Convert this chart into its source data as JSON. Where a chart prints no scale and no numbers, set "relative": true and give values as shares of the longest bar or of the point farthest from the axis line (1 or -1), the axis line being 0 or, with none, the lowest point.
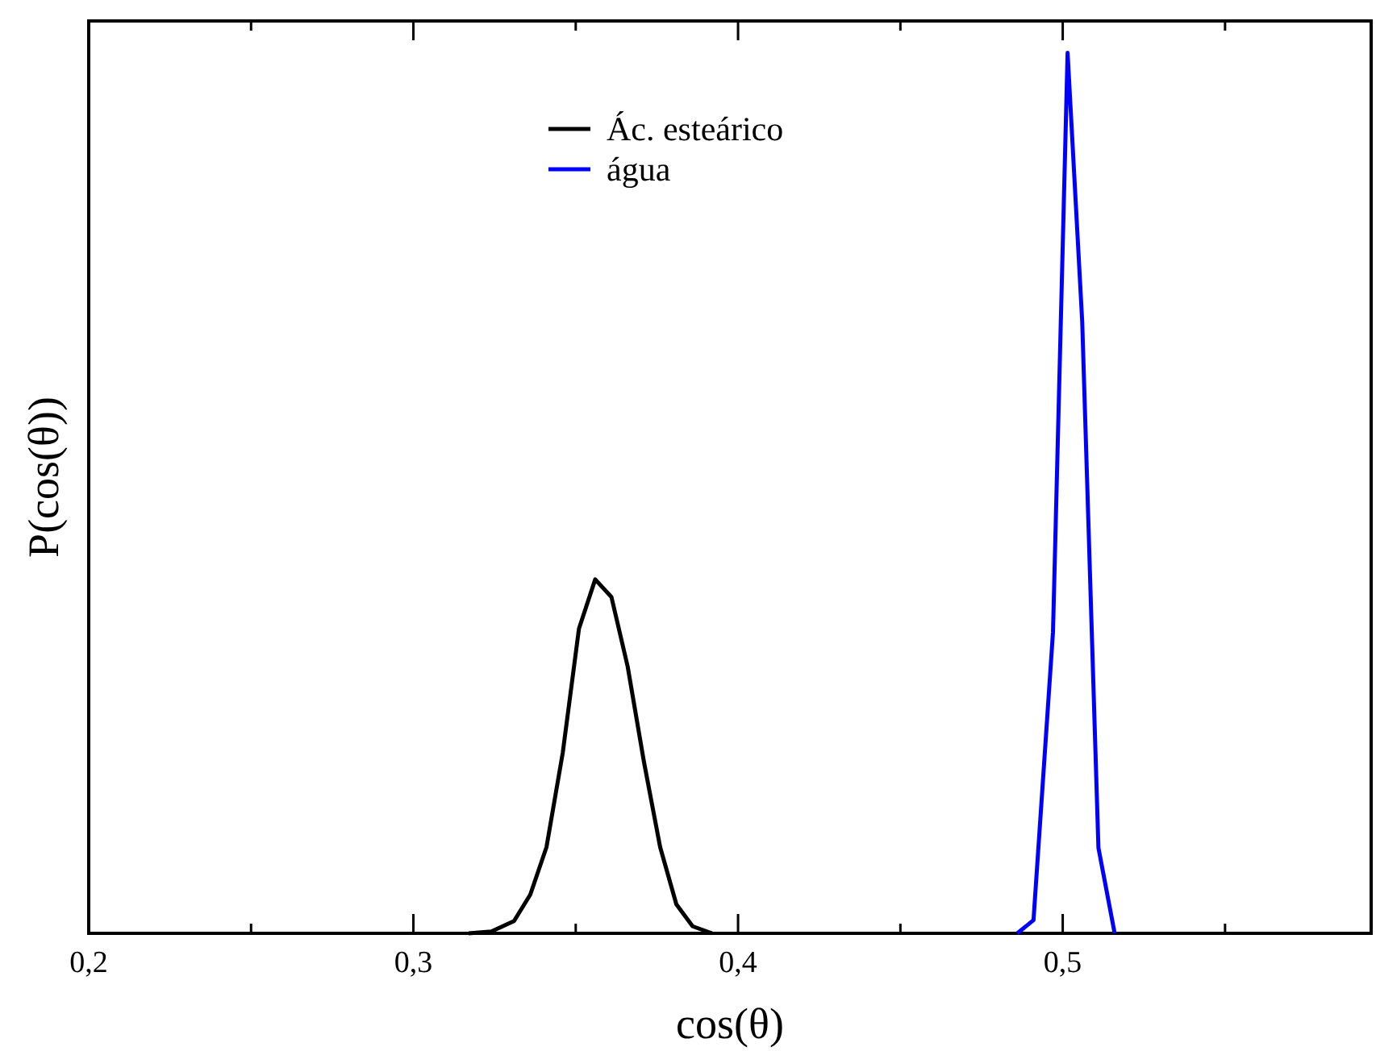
{
  "chart_data": {
    "type": "line",
    "relative": true,
    "xlabel": "cos(θ)",
    "ylabel": "P(cos(θ))",
    "xlim": [
      0.2,
      0.595
    ],
    "xticks": [
      {
        "value": 0.2,
        "label": "0,2"
      },
      {
        "value": 0.25,
        "label": null
      },
      {
        "value": 0.3,
        "label": "0,3"
      },
      {
        "value": 0.35,
        "label": null
      },
      {
        "value": 0.4,
        "label": "0,4"
      },
      {
        "value": 0.45,
        "label": null
      },
      {
        "value": 0.5,
        "label": "0,5"
      },
      {
        "value": 0.55,
        "label": null
      }
    ],
    "legend": "top",
    "grid": false,
    "line_style": "solid",
    "series": [
      {
        "name": "Ác. esteárico",
        "color": "#000000",
        "x": [
          0.317,
          0.324,
          0.331,
          0.336,
          0.341,
          0.346,
          0.351,
          0.356,
          0.361,
          0.366,
          0.371,
          0.376,
          0.381,
          0.386,
          0.392
        ],
        "values": [
          0,
          0.002,
          0.014,
          0.044,
          0.098,
          0.205,
          0.346,
          0.402,
          0.382,
          0.303,
          0.195,
          0.098,
          0.033,
          0.008,
          0
        ]
      },
      {
        "name": "água",
        "color": "#0000ff",
        "x": [
          0.486,
          0.491,
          0.497,
          0.5015,
          0.506,
          0.511,
          0.516
        ],
        "values": [
          0,
          0.015,
          0.342,
          1,
          0.695,
          0.097,
          0
        ]
      }
    ]
  }
}
